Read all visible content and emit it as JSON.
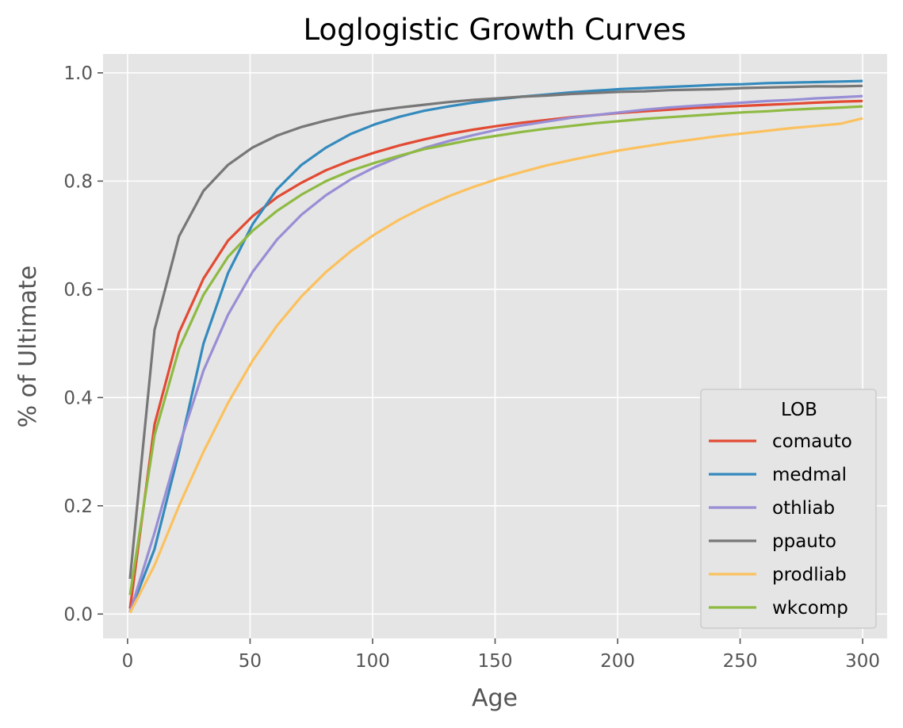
{
  "chart_data": {
    "type": "line",
    "title": "Loglogistic Growth Curves",
    "xlabel": "Age",
    "ylabel": "% of Ultimate",
    "xlim": [
      -10,
      310
    ],
    "ylim": [
      -0.045,
      1.035
    ],
    "x_ticks": [
      0,
      50,
      100,
      150,
      200,
      250,
      300
    ],
    "x_tick_labels": [
      "0",
      "50",
      "100",
      "150",
      "200",
      "250",
      "300"
    ],
    "y_ticks": [
      0.0,
      0.2,
      0.4,
      0.6,
      0.8,
      1.0
    ],
    "y_tick_labels": [
      "0.0",
      "0.2",
      "0.4",
      "0.6",
      "0.8",
      "1.0"
    ],
    "grid": true,
    "background": "#e5e5e5",
    "legend": {
      "title": "LOB",
      "placement": "lower-right"
    },
    "x": [
      1,
      11,
      21,
      31,
      41,
      51,
      61,
      71,
      81,
      91,
      101,
      111,
      121,
      131,
      141,
      151,
      161,
      171,
      181,
      191,
      201,
      211,
      221,
      231,
      241,
      251,
      261,
      271,
      281,
      291,
      300
    ],
    "series": [
      {
        "name": "comauto",
        "color": "#E24A33",
        "values": [
          0.01,
          0.35,
          0.52,
          0.62,
          0.69,
          0.735,
          0.77,
          0.797,
          0.82,
          0.838,
          0.853,
          0.866,
          0.877,
          0.887,
          0.895,
          0.902,
          0.908,
          0.913,
          0.918,
          0.922,
          0.926,
          0.929,
          0.932,
          0.935,
          0.937,
          0.939,
          0.941,
          0.943,
          0.945,
          0.947,
          0.948
        ]
      },
      {
        "name": "medmal",
        "color": "#348ABD",
        "values": [
          0.003,
          0.12,
          0.3,
          0.5,
          0.63,
          0.72,
          0.785,
          0.83,
          0.862,
          0.887,
          0.905,
          0.919,
          0.93,
          0.938,
          0.945,
          0.951,
          0.956,
          0.96,
          0.964,
          0.967,
          0.97,
          0.972,
          0.974,
          0.976,
          0.978,
          0.979,
          0.981,
          0.982,
          0.983,
          0.984,
          0.985
        ]
      },
      {
        "name": "othliab",
        "color": "#988ED5",
        "values": [
          0.003,
          0.15,
          0.31,
          0.45,
          0.553,
          0.632,
          0.692,
          0.738,
          0.774,
          0.803,
          0.826,
          0.845,
          0.861,
          0.874,
          0.885,
          0.895,
          0.903,
          0.91,
          0.917,
          0.922,
          0.927,
          0.932,
          0.936,
          0.939,
          0.942,
          0.945,
          0.948,
          0.95,
          0.953,
          0.955,
          0.957
        ]
      },
      {
        "name": "ppauto",
        "color": "#777777",
        "values": [
          0.065,
          0.525,
          0.698,
          0.782,
          0.83,
          0.862,
          0.884,
          0.9,
          0.912,
          0.922,
          0.93,
          0.936,
          0.941,
          0.946,
          0.95,
          0.953,
          0.956,
          0.958,
          0.961,
          0.963,
          0.965,
          0.966,
          0.968,
          0.969,
          0.97,
          0.972,
          0.973,
          0.974,
          0.975,
          0.975,
          0.976
        ]
      },
      {
        "name": "prodliab",
        "color": "#FBC15E",
        "values": [
          0.002,
          0.09,
          0.2,
          0.3,
          0.39,
          0.468,
          0.533,
          0.587,
          0.632,
          0.67,
          0.702,
          0.729,
          0.752,
          0.772,
          0.789,
          0.804,
          0.817,
          0.829,
          0.839,
          0.848,
          0.857,
          0.864,
          0.871,
          0.877,
          0.883,
          0.888,
          0.893,
          0.898,
          0.902,
          0.906,
          0.916
        ]
      },
      {
        "name": "wkcomp",
        "color": "#8EBA42",
        "values": [
          0.035,
          0.33,
          0.49,
          0.59,
          0.66,
          0.708,
          0.745,
          0.775,
          0.8,
          0.819,
          0.834,
          0.847,
          0.859,
          0.868,
          0.877,
          0.884,
          0.891,
          0.897,
          0.902,
          0.907,
          0.911,
          0.915,
          0.918,
          0.921,
          0.924,
          0.927,
          0.929,
          0.932,
          0.934,
          0.936,
          0.938
        ]
      }
    ]
  }
}
